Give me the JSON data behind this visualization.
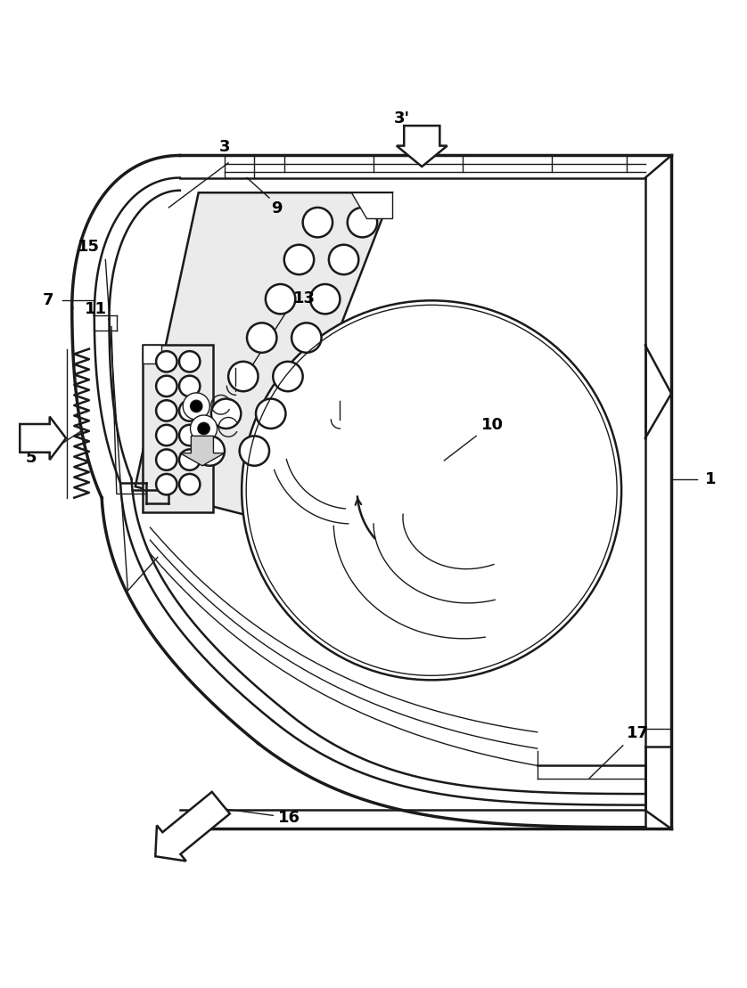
{
  "bg_color": "#ffffff",
  "line_color": "#1a1a1a",
  "label_color": "#000000",
  "fig_width": 8.38,
  "fig_height": 11.09,
  "dpi": 100
}
